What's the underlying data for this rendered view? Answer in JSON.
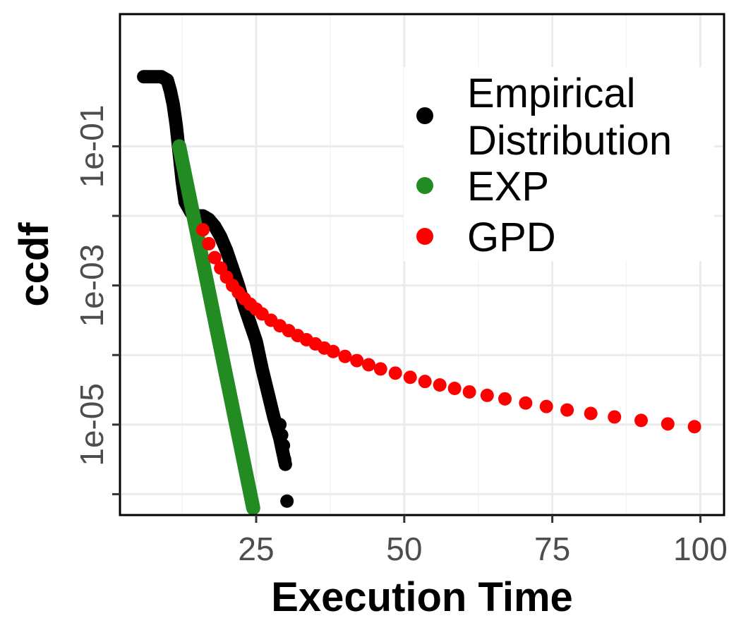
{
  "chart_data": {
    "type": "scatter",
    "title": "",
    "xlabel": "Execution Time",
    "ylabel": "ccdf",
    "xlim": [
      2,
      104
    ],
    "ylim_log10": [
      -6.3,
      0.9
    ],
    "y_scale": "log10",
    "x_ticks": [
      25,
      50,
      75,
      100
    ],
    "x_tick_labels": [
      "25",
      "50",
      "75",
      "100"
    ],
    "y_ticks_log10": [
      -6,
      -5,
      -4,
      -3,
      -2,
      -1
    ],
    "y_tick_labels": [
      "1e-05",
      "1e-03",
      "1e-01"
    ],
    "y_tick_labels_log10": [
      -5,
      -3,
      -1
    ],
    "grid": true,
    "legend_position": "top-right",
    "series": [
      {
        "name": "Empirical Distribution",
        "legend_label_lines": [
          "Empirical",
          "Distribution"
        ],
        "color": "#000000",
        "style": "dense-points",
        "x": [
          6,
          7,
          8,
          9,
          10,
          10.5,
          11,
          11.5,
          12,
          12.5,
          13,
          14,
          15,
          16,
          17,
          18,
          19,
          20,
          21,
          22,
          23,
          24,
          25,
          26,
          27,
          28,
          29,
          30
        ],
        "log10_y": [
          0,
          0,
          0,
          0,
          -0.05,
          -0.2,
          -0.4,
          -0.7,
          -1.1,
          -1.5,
          -1.8,
          -1.95,
          -2.0,
          -2.0,
          -2.05,
          -2.15,
          -2.3,
          -2.5,
          -2.75,
          -3.0,
          -3.3,
          -3.55,
          -3.8,
          -4.2,
          -4.55,
          -4.9,
          -5.2,
          -5.6
        ],
        "tail_points": [
          {
            "x": 29,
            "log10_y": -5.0
          },
          {
            "x": 29.3,
            "log10_y": -5.15
          },
          {
            "x": 29.6,
            "log10_y": -5.3
          },
          {
            "x": 29.8,
            "log10_y": -5.5
          },
          {
            "x": 30.2,
            "log10_y": -6.1
          }
        ]
      },
      {
        "name": "EXP",
        "color": "#228b22",
        "style": "line",
        "x": [
          12,
          24.5
        ],
        "log10_y": [
          -1,
          -6.2
        ]
      },
      {
        "name": "GPD",
        "color": "#ff0000",
        "style": "points",
        "x": [
          16,
          17,
          18,
          19,
          20,
          21,
          22,
          23,
          24,
          25,
          26,
          27.5,
          29,
          30.5,
          32,
          33.5,
          35,
          36.5,
          38,
          40,
          42,
          44,
          46,
          48.5,
          51,
          53.5,
          56,
          58.5,
          61,
          64,
          67,
          70.5,
          74,
          77.5,
          81.5,
          85.5,
          90,
          94.5,
          99
        ],
        "log10_y": [
          -2.2,
          -2.4,
          -2.6,
          -2.75,
          -2.88,
          -3.0,
          -3.1,
          -3.19,
          -3.27,
          -3.34,
          -3.41,
          -3.5,
          -3.58,
          -3.65,
          -3.72,
          -3.78,
          -3.84,
          -3.9,
          -3.95,
          -4.02,
          -4.08,
          -4.14,
          -4.2,
          -4.26,
          -4.32,
          -4.38,
          -4.43,
          -4.48,
          -4.53,
          -4.58,
          -4.63,
          -4.69,
          -4.74,
          -4.79,
          -4.84,
          -4.89,
          -4.94,
          -4.99,
          -5.03
        ]
      }
    ]
  }
}
